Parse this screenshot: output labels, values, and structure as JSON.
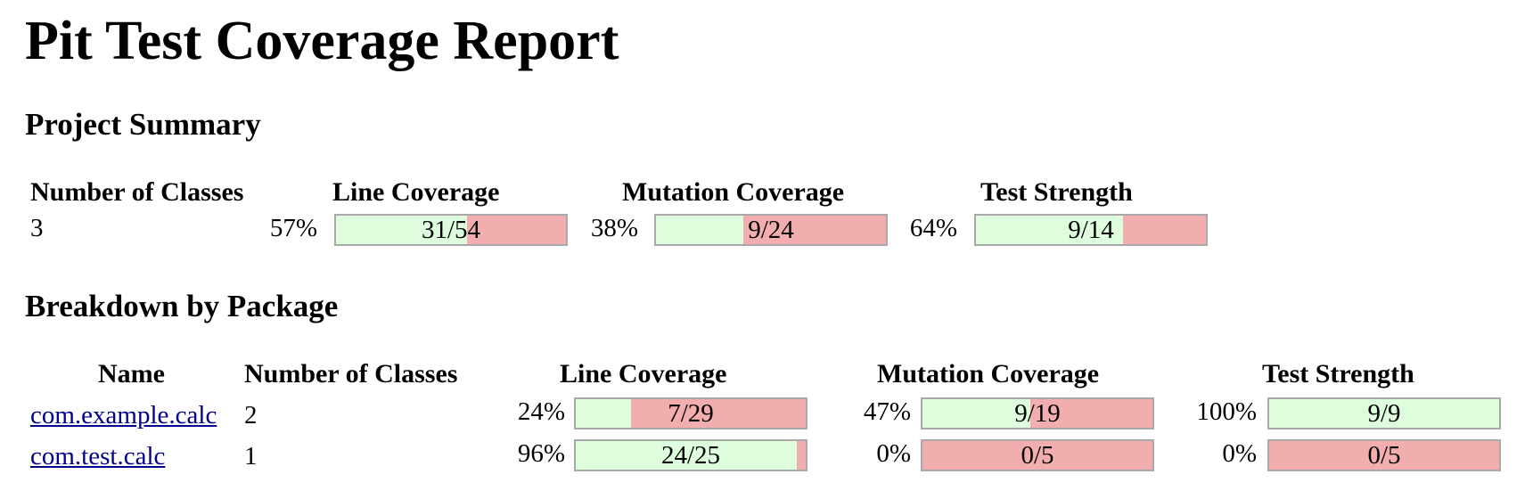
{
  "title": "Pit Test Coverage Report",
  "project_summary": {
    "heading": "Project Summary",
    "headers": {
      "number_of_classes": "Number of Classes",
      "line_coverage": "Line Coverage",
      "mutation_coverage": "Mutation Coverage",
      "test_strength": "Test Strength"
    },
    "number_of_classes": "3",
    "line_coverage": {
      "percent": "57%",
      "ratio": "31/54",
      "fraction": 0.57
    },
    "mutation_coverage": {
      "percent": "38%",
      "ratio": "9/24",
      "fraction": 0.38
    },
    "test_strength": {
      "percent": "64%",
      "ratio": "9/14",
      "fraction": 0.64
    }
  },
  "breakdown": {
    "heading": "Breakdown by Package",
    "headers": {
      "name": "Name",
      "number_of_classes": "Number of Classes",
      "line_coverage": "Line Coverage",
      "mutation_coverage": "Mutation Coverage",
      "test_strength": "Test Strength"
    },
    "rows": [
      {
        "name": "com.example.calc",
        "number_of_classes": "2",
        "line_coverage": {
          "percent": "24%",
          "ratio": "7/29",
          "fraction": 0.24
        },
        "mutation_coverage": {
          "percent": "47%",
          "ratio": "9/19",
          "fraction": 0.47
        },
        "test_strength": {
          "percent": "100%",
          "ratio": "9/9",
          "fraction": 1.0
        }
      },
      {
        "name": "com.test.calc",
        "number_of_classes": "1",
        "line_coverage": {
          "percent": "96%",
          "ratio": "24/25",
          "fraction": 0.96
        },
        "mutation_coverage": {
          "percent": "0%",
          "ratio": "0/5",
          "fraction": 0.0
        },
        "test_strength": {
          "percent": "0%",
          "ratio": "0/5",
          "fraction": 0.0
        }
      }
    ]
  },
  "colors": {
    "covered": "#ddfddd",
    "uncovered": "#f2aeae",
    "bar_border": "#a9a9a9",
    "link": "#00008b"
  }
}
